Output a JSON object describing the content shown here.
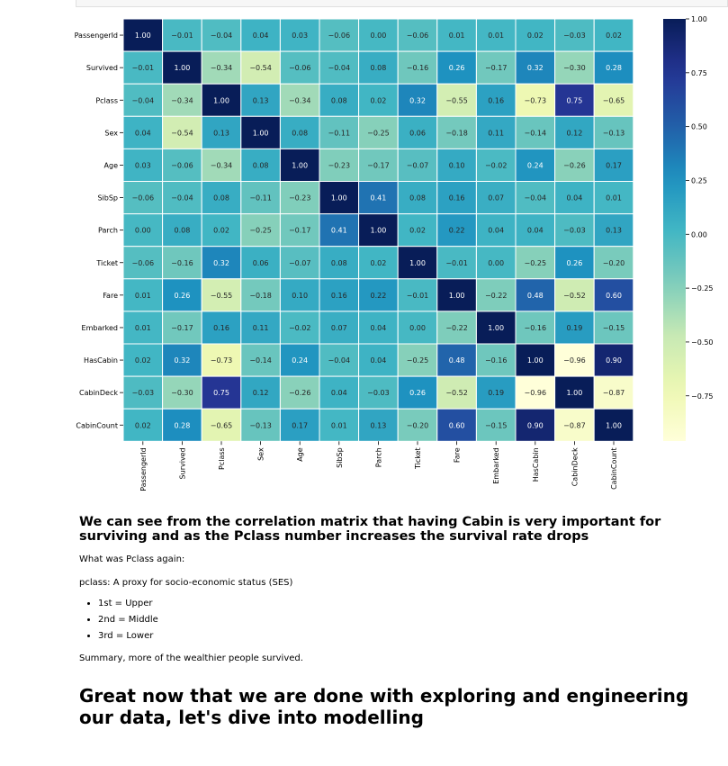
{
  "chart_data": {
    "type": "heatmap",
    "title": "",
    "labels": [
      "PassengerId",
      "Survived",
      "Pclass",
      "Sex",
      "Age",
      "SibSp",
      "Parch",
      "Ticket",
      "Fare",
      "Embarked",
      "HasCabin",
      "CabinDeck",
      "CabinCount"
    ],
    "values": [
      [
        1.0,
        -0.01,
        -0.04,
        0.04,
        0.03,
        -0.06,
        -0.0,
        -0.06,
        0.01,
        0.01,
        0.02,
        -0.03,
        0.02
      ],
      [
        -0.01,
        1.0,
        -0.34,
        -0.54,
        -0.06,
        -0.04,
        0.08,
        -0.16,
        0.26,
        -0.17,
        0.32,
        -0.3,
        0.28
      ],
      [
        -0.04,
        -0.34,
        1.0,
        0.13,
        -0.34,
        0.08,
        0.02,
        0.32,
        -0.55,
        0.16,
        -0.73,
        0.75,
        -0.65
      ],
      [
        0.04,
        -0.54,
        0.13,
        1.0,
        0.08,
        -0.11,
        -0.25,
        0.06,
        -0.18,
        0.11,
        -0.14,
        0.12,
        -0.13
      ],
      [
        0.03,
        -0.06,
        -0.34,
        0.08,
        1.0,
        -0.23,
        -0.17,
        -0.07,
        0.1,
        -0.02,
        0.24,
        -0.26,
        0.17
      ],
      [
        -0.06,
        -0.04,
        0.08,
        -0.11,
        -0.23,
        1.0,
        0.41,
        0.08,
        0.16,
        0.07,
        -0.04,
        0.04,
        0.01
      ],
      [
        -0.0,
        0.08,
        0.02,
        -0.25,
        -0.17,
        0.41,
        1.0,
        0.02,
        0.22,
        0.04,
        0.04,
        -0.03,
        0.13
      ],
      [
        -0.06,
        -0.16,
        0.32,
        0.06,
        -0.07,
        0.08,
        0.02,
        1.0,
        -0.01,
        -0.0,
        -0.25,
        0.26,
        -0.2
      ],
      [
        0.01,
        0.26,
        -0.55,
        -0.18,
        0.1,
        0.16,
        0.22,
        -0.01,
        1.0,
        -0.22,
        0.48,
        -0.52,
        0.6
      ],
      [
        0.01,
        -0.17,
        0.16,
        0.11,
        -0.02,
        0.07,
        0.04,
        -0.0,
        -0.22,
        1.0,
        -0.16,
        0.19,
        -0.15
      ],
      [
        0.02,
        0.32,
        -0.73,
        -0.14,
        0.24,
        -0.04,
        0.04,
        -0.25,
        0.48,
        -0.16,
        1.0,
        -0.96,
        0.9
      ],
      [
        -0.03,
        -0.3,
        0.75,
        0.12,
        -0.26,
        0.04,
        -0.03,
        0.26,
        -0.52,
        0.19,
        -0.96,
        1.0,
        -0.87
      ],
      [
        0.02,
        0.28,
        -0.65,
        -0.13,
        0.17,
        0.01,
        0.13,
        -0.2,
        0.6,
        -0.15,
        0.9,
        -0.87,
        1.0
      ]
    ],
    "colormap": "YlGnBu",
    "colorbar": {
      "range": [
        -0.96,
        1.0
      ],
      "ticks": [
        1.0,
        0.75,
        0.5,
        0.25,
        0.0,
        -0.25,
        -0.5,
        -0.75
      ],
      "tick_labels": [
        "1.00",
        "0.75",
        "0.50",
        "0.25",
        "0.00",
        "−0.25",
        "−0.50",
        "−0.75"
      ]
    },
    "annot_format": "0.00",
    "grid_lines": "white"
  },
  "text": {
    "heading1": "We can see from the correlation matrix that having Cabin is very important for surviving and as the Pclass number increases the survival rate drops",
    "question": "What was Pclass again:",
    "definition": "pclass: A proxy for socio-economic status (SES)",
    "list": [
      "1st = Upper",
      "2nd = Middle",
      "3rd = Lower"
    ],
    "summary": "Summary, more of the wealthier people survived.",
    "heading2": "Great now that we are done with exploring and engineering our data, let's dive into modelling"
  }
}
